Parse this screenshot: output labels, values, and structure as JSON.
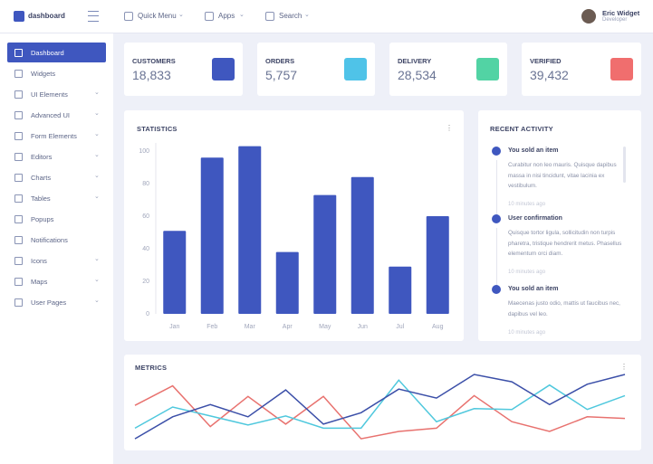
{
  "header": {
    "brand": "dashboard",
    "menu": [
      "Quick Menu",
      "Apps",
      "Search"
    ],
    "user": {
      "name": "Eric Widget",
      "role": "Developer"
    }
  },
  "sidebar": [
    {
      "label": "Dashboard",
      "active": true
    },
    {
      "label": "Widgets"
    },
    {
      "label": "UI Elements",
      "submenu": true
    },
    {
      "label": "Advanced UI",
      "submenu": true
    },
    {
      "label": "Form Elements",
      "submenu": true
    },
    {
      "label": "Editors",
      "submenu": true
    },
    {
      "label": "Charts",
      "submenu": true
    },
    {
      "label": "Tables",
      "submenu": true
    },
    {
      "label": "Popups"
    },
    {
      "label": "Notifications"
    },
    {
      "label": "Icons",
      "submenu": true
    },
    {
      "label": "Maps",
      "submenu": true
    },
    {
      "label": "User Pages",
      "submenu": true
    }
  ],
  "stats": [
    {
      "label": "CUSTOMERS",
      "value": "18,833",
      "color": "#3f57bf"
    },
    {
      "label": "ORDERS",
      "value": "5,757",
      "color": "#4fc3e8"
    },
    {
      "label": "DELIVERY",
      "value": "28,534",
      "color": "#52d3a4"
    },
    {
      "label": "VERIFIED",
      "value": "39,432",
      "color": "#f06e6e"
    }
  ],
  "activity": {
    "title": "RECENT ACTIVITY",
    "items": [
      {
        "title": "You sold an item",
        "text": "Curabitur non leo mauris. Quisque dapibus massa in nisi tincidunt, vitae lacinia ex vestibulum.",
        "time": "10 minutes ago"
      },
      {
        "title": "User confirmation",
        "text": "Quisque tortor ligula, sollicitudin non turpis pharetra, tristique hendrerit metus. Phasellus elementum orci diam.",
        "time": "10 minutes ago"
      },
      {
        "title": "You sold an item",
        "text": "Maecenas justo odio, mattis ut faucibus nec, dapibus vel leo.",
        "time": "10 minutes ago"
      }
    ]
  },
  "chart_data": [
    {
      "type": "bar",
      "title": "STATISTICS",
      "categories": [
        "Jan",
        "Feb",
        "Mar",
        "Apr",
        "May",
        "Jun",
        "Jul",
        "Aug"
      ],
      "values": [
        51,
        96,
        103,
        38,
        73,
        84,
        29,
        60
      ],
      "color": "#3f57bf",
      "ylim": [
        0,
        105
      ],
      "yticks": [
        0,
        20,
        40,
        60,
        80,
        100
      ]
    },
    {
      "type": "line",
      "title": "METRICS",
      "ylim": [
        0,
        100
      ],
      "series": [
        {
          "color": "#e8726f",
          "values": [
            52,
            76,
            26,
            63,
            29,
            63,
            11,
            20,
            24,
            64,
            32,
            20,
            38,
            36
          ]
        },
        {
          "color": "#4fc8dd",
          "values": [
            24,
            50,
            39,
            28,
            39,
            24,
            24,
            83,
            32,
            48,
            47,
            77,
            47,
            64
          ]
        },
        {
          "color": "#3b4fa8",
          "values": [
            11,
            38,
            53,
            38,
            71,
            29,
            43,
            72,
            61,
            90,
            81,
            53,
            78,
            90
          ]
        }
      ]
    }
  ]
}
